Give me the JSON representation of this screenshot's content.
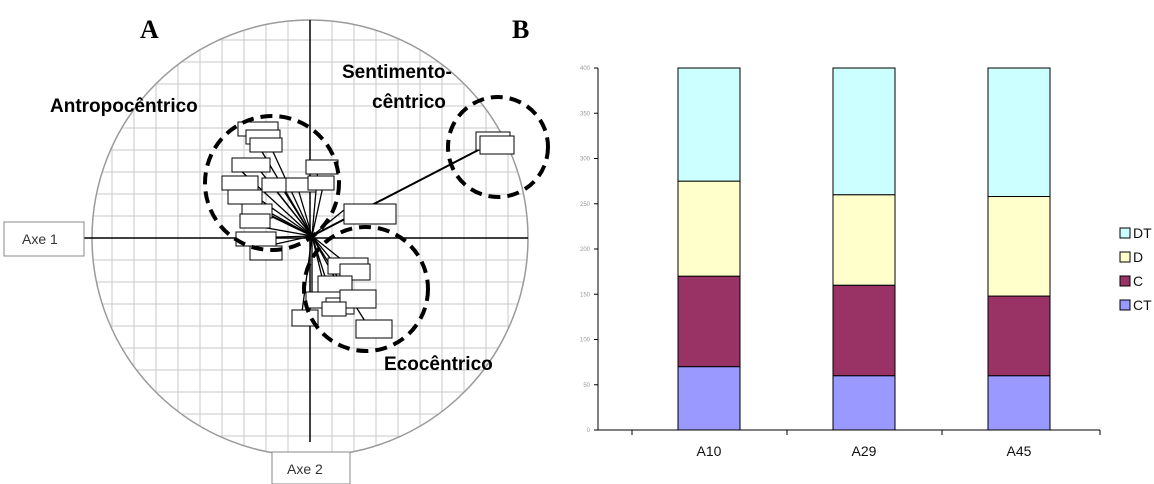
{
  "panel_a": {
    "letter": "A",
    "axis1_label": "Axe 1",
    "axis2_label": "Axe 2",
    "groups": [
      {
        "name": "Antropocêntrico",
        "lines": [
          "Antropocêntrico"
        ]
      },
      {
        "name": "Sentimento-cêntrico",
        "lines": [
          "Sentimento-",
          "cêntrico"
        ]
      },
      {
        "name": "Ecocêntrico",
        "lines": [
          "Ecocêntrico"
        ]
      }
    ]
  },
  "panel_b": {
    "letter": "B"
  },
  "chart_data": [
    {
      "type": "scatter",
      "title": "",
      "xlabel": "Axe 1",
      "ylabel": "Axe 2",
      "grid": true,
      "groups": [
        "Antropocêntrico",
        "Sentimento-cêntrico",
        "Ecocêntrico"
      ]
    },
    {
      "type": "bar",
      "stacked": true,
      "categories": [
        "A10",
        "A29",
        "A45"
      ],
      "series": [
        {
          "name": "CT",
          "color": "#9999ff",
          "values": [
            70,
            60,
            60
          ]
        },
        {
          "name": "C",
          "color": "#993366",
          "values": [
            100,
            100,
            88
          ]
        },
        {
          "name": "D",
          "color": "#ffffcc",
          "values": [
            105,
            100,
            110
          ]
        },
        {
          "name": "DT",
          "color": "#ccffff",
          "values": [
            125,
            140,
            142
          ]
        }
      ],
      "ylim": [
        0,
        400
      ],
      "yticks": [
        "0",
        "50",
        "100",
        "150",
        "200",
        "250",
        "300",
        "350",
        "400"
      ],
      "legend": "right",
      "legend_order": [
        "DT",
        "D",
        "C",
        "CT"
      ],
      "xlabel": "",
      "ylabel": ""
    }
  ]
}
